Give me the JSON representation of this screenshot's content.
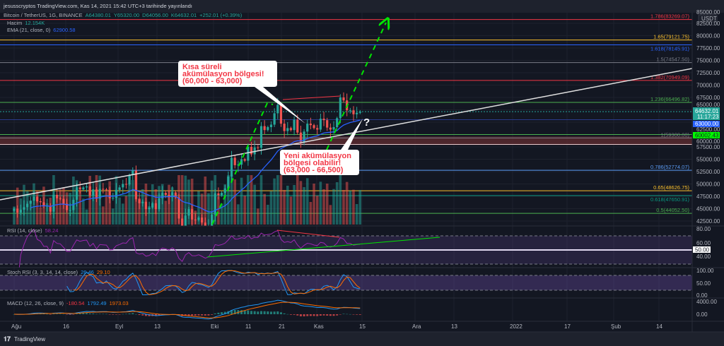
{
  "header": {
    "published": "jesusscryptos TradingView.com, Kas 14, 2021 15:42 UTC+3 tarihinde yayınlandı"
  },
  "legend": {
    "symbol": "Bitcoin / TetherUS, 1G, BINANCE",
    "open": "A64380.01",
    "high": "Y65320.00",
    "low": "D64056.00",
    "close": "K64632.01",
    "change": "+252.01 (+0.39%)",
    "volume_label": "Hacim",
    "volume_value": "12.154K",
    "ema_label": "EMA (21, close, 0)",
    "ema_value": "62900.58"
  },
  "indicators": {
    "rsi_label": "RSI (14, close)",
    "rsi_value": "58.24",
    "stoch_label": "Stoch RSI (3, 3, 14, 14, close)",
    "stoch_k": "26.46",
    "stoch_d": "29.10",
    "macd_label": "MACD (12, 26, close, 9)",
    "macd_hist": "-180.54",
    "macd_line": "1792.49",
    "macd_signal": "1973.03"
  },
  "price_axis": {
    "currency": "USDT",
    "top_label": "85000.00",
    "labels": [
      "82500.00",
      "80000.00",
      "77500.00",
      "75000.00",
      "72500.00",
      "70000.00",
      "67500.00",
      "65000.00",
      "62500.00",
      "60000.00",
      "57500.00",
      "55000.00",
      "52500.00",
      "50000.00",
      "47500.00",
      "45000.00",
      "42500.00"
    ],
    "rsi_labels": [
      "80.00",
      "60.00",
      "40.00"
    ],
    "rsi_level_badge": "50.00",
    "stoch_labels": [
      "100.00",
      "50.00",
      "0.00"
    ],
    "macd_labels": [
      "4000.00",
      "0.00"
    ],
    "last_price": "64632.01",
    "countdown": "11:17:23",
    "ema_badge": "63000.00",
    "level_badge": "60002.43"
  },
  "time_axis": [
    "Ağu",
    "16",
    "Eyl",
    "13",
    "Eki",
    "11",
    "21",
    "Kas",
    "15",
    "Ara",
    "13",
    "2022",
    "17",
    "Şub",
    "14"
  ],
  "fib_levels": [
    {
      "label": "1.786(83269.07)",
      "price": 83269.07,
      "color": "#f23645"
    },
    {
      "label": "1.65(79121.75)",
      "price": 79121.75,
      "color": "#fbc02d"
    },
    {
      "label": "1.618(78145.91)",
      "price": 78145.91,
      "color": "#2962ff"
    },
    {
      "label": "1.5(74547.50)",
      "price": 74547.5,
      "color": "#787b86"
    },
    {
      "label": "1.382(70949.09)",
      "price": 70949.09,
      "color": "#f23645"
    },
    {
      "label": "1.236(66496.82)",
      "price": 66496.82,
      "color": "#4caf50"
    },
    {
      "label": "1(59300.00)",
      "price": 59300.0,
      "color": "#787b86"
    },
    {
      "label": "0.786(52774.07)",
      "price": 52774.07,
      "color": "#5b9cf6"
    },
    {
      "label": "0.65(48626.75)",
      "price": 48626.75,
      "color": "#fbc02d"
    },
    {
      "label": "0.618(47650.91)",
      "price": 47650.91,
      "color": "#089981"
    },
    {
      "label": "0.5(44052.50)",
      "price": 44052.5,
      "color": "#4caf50"
    }
  ],
  "annotations": {
    "callout1": [
      "Kısa süreli",
      "akümülasyon bölgesi!",
      "(60,000 - 63,000)"
    ],
    "callout2": [
      "Yeni akümülasyon",
      "bölgesi olabilir!",
      "(63,000 - 66,500)"
    ],
    "question": "?"
  },
  "footer": {
    "brand": "TradingView"
  },
  "colors": {
    "up": "#26a69a",
    "down": "#ef5350",
    "ema": "#2962ff",
    "rsi": "#7e57c2",
    "bg": "#131722"
  },
  "chart_data": {
    "type": "candlestick",
    "title": "Bitcoin / TetherUS, 1G, BINANCE",
    "start_date": "2021-08-01",
    "interval": "1D",
    "ylabel": "USDT",
    "ylim": [
      42500,
      85000
    ],
    "closes": [
      45000,
      44200,
      44800,
      45300,
      46000,
      46600,
      47400,
      46500,
      46300,
      45600,
      45600,
      44400,
      47800,
      47100,
      47000,
      46000,
      44700,
      44700,
      46800,
      49300,
      48900,
      49300,
      49500,
      47700,
      48900,
      47000,
      49000,
      48900,
      48800,
      47100,
      47200,
      48800,
      49300,
      50000,
      49900,
      51800,
      52700,
      46900,
      46100,
      46400,
      44900,
      45200,
      46100,
      44900,
      47100,
      48200,
      47800,
      47300,
      48300,
      47300,
      43000,
      40700,
      43600,
      44900,
      42800,
      42700,
      43200,
      42200,
      41000,
      41500,
      43800,
      48100,
      47700,
      48200,
      49100,
      51500,
      55300,
      53800,
      53900,
      55000,
      54700,
      57500,
      56000,
      57400,
      57300,
      61700,
      60900,
      61500,
      62000,
      64300,
      66000,
      62200,
      60700,
      61300,
      60900,
      63000,
      60400,
      58500,
      60600,
      62200,
      61900,
      61300,
      61000,
      63200,
      62900,
      61400,
      61000,
      61500,
      63300,
      67500,
      66900,
      64900,
      64900,
      64100,
      64400,
      64632
    ]
  }
}
